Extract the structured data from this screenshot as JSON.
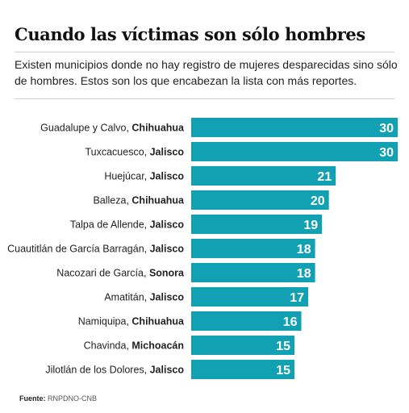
{
  "title": "Cuando las víctimas son sólo hombres",
  "subtitle": "Existen municipios donde no hay registro de mujeres desparecidas sino sólo de hombres. Estos son los que encabezan la lista con más reportes.",
  "source_label": "Fuente:",
  "source_text": "RNPDNO-CNB",
  "colors": {
    "bar": "#12a0b3",
    "value_text": "#ffffff"
  },
  "chart_data": {
    "type": "bar",
    "orientation": "horizontal",
    "title": "Cuando las víctimas son sólo hombres",
    "categories": [
      {
        "municipio": "Guadalupe y Calvo",
        "estado": "Chihuahua"
      },
      {
        "municipio": "Tuxcacuesco",
        "estado": "Jalisco"
      },
      {
        "municipio": "Huejúcar",
        "estado": "Jalisco"
      },
      {
        "municipio": "Balleza",
        "estado": "Chihuahua"
      },
      {
        "municipio": "Talpa de Allende",
        "estado": "Jalisco"
      },
      {
        "municipio": "Cuautitlán de García Barragán",
        "estado": "Jalisco"
      },
      {
        "municipio": "Nacozari de García",
        "estado": "Sonora"
      },
      {
        "municipio": "Amatitán",
        "estado": "Jalisco"
      },
      {
        "municipio": "Namiquipa",
        "estado": "Chihuahua"
      },
      {
        "municipio": "Chavinda",
        "estado": "Michoacán"
      },
      {
        "municipio": "Jilotlán de los Dolores",
        "estado": "Jalisco"
      }
    ],
    "values": [
      30,
      30,
      21,
      20,
      19,
      18,
      18,
      17,
      16,
      15,
      15
    ],
    "xlim": [
      0,
      30
    ],
    "grid": false,
    "legend": "none"
  }
}
